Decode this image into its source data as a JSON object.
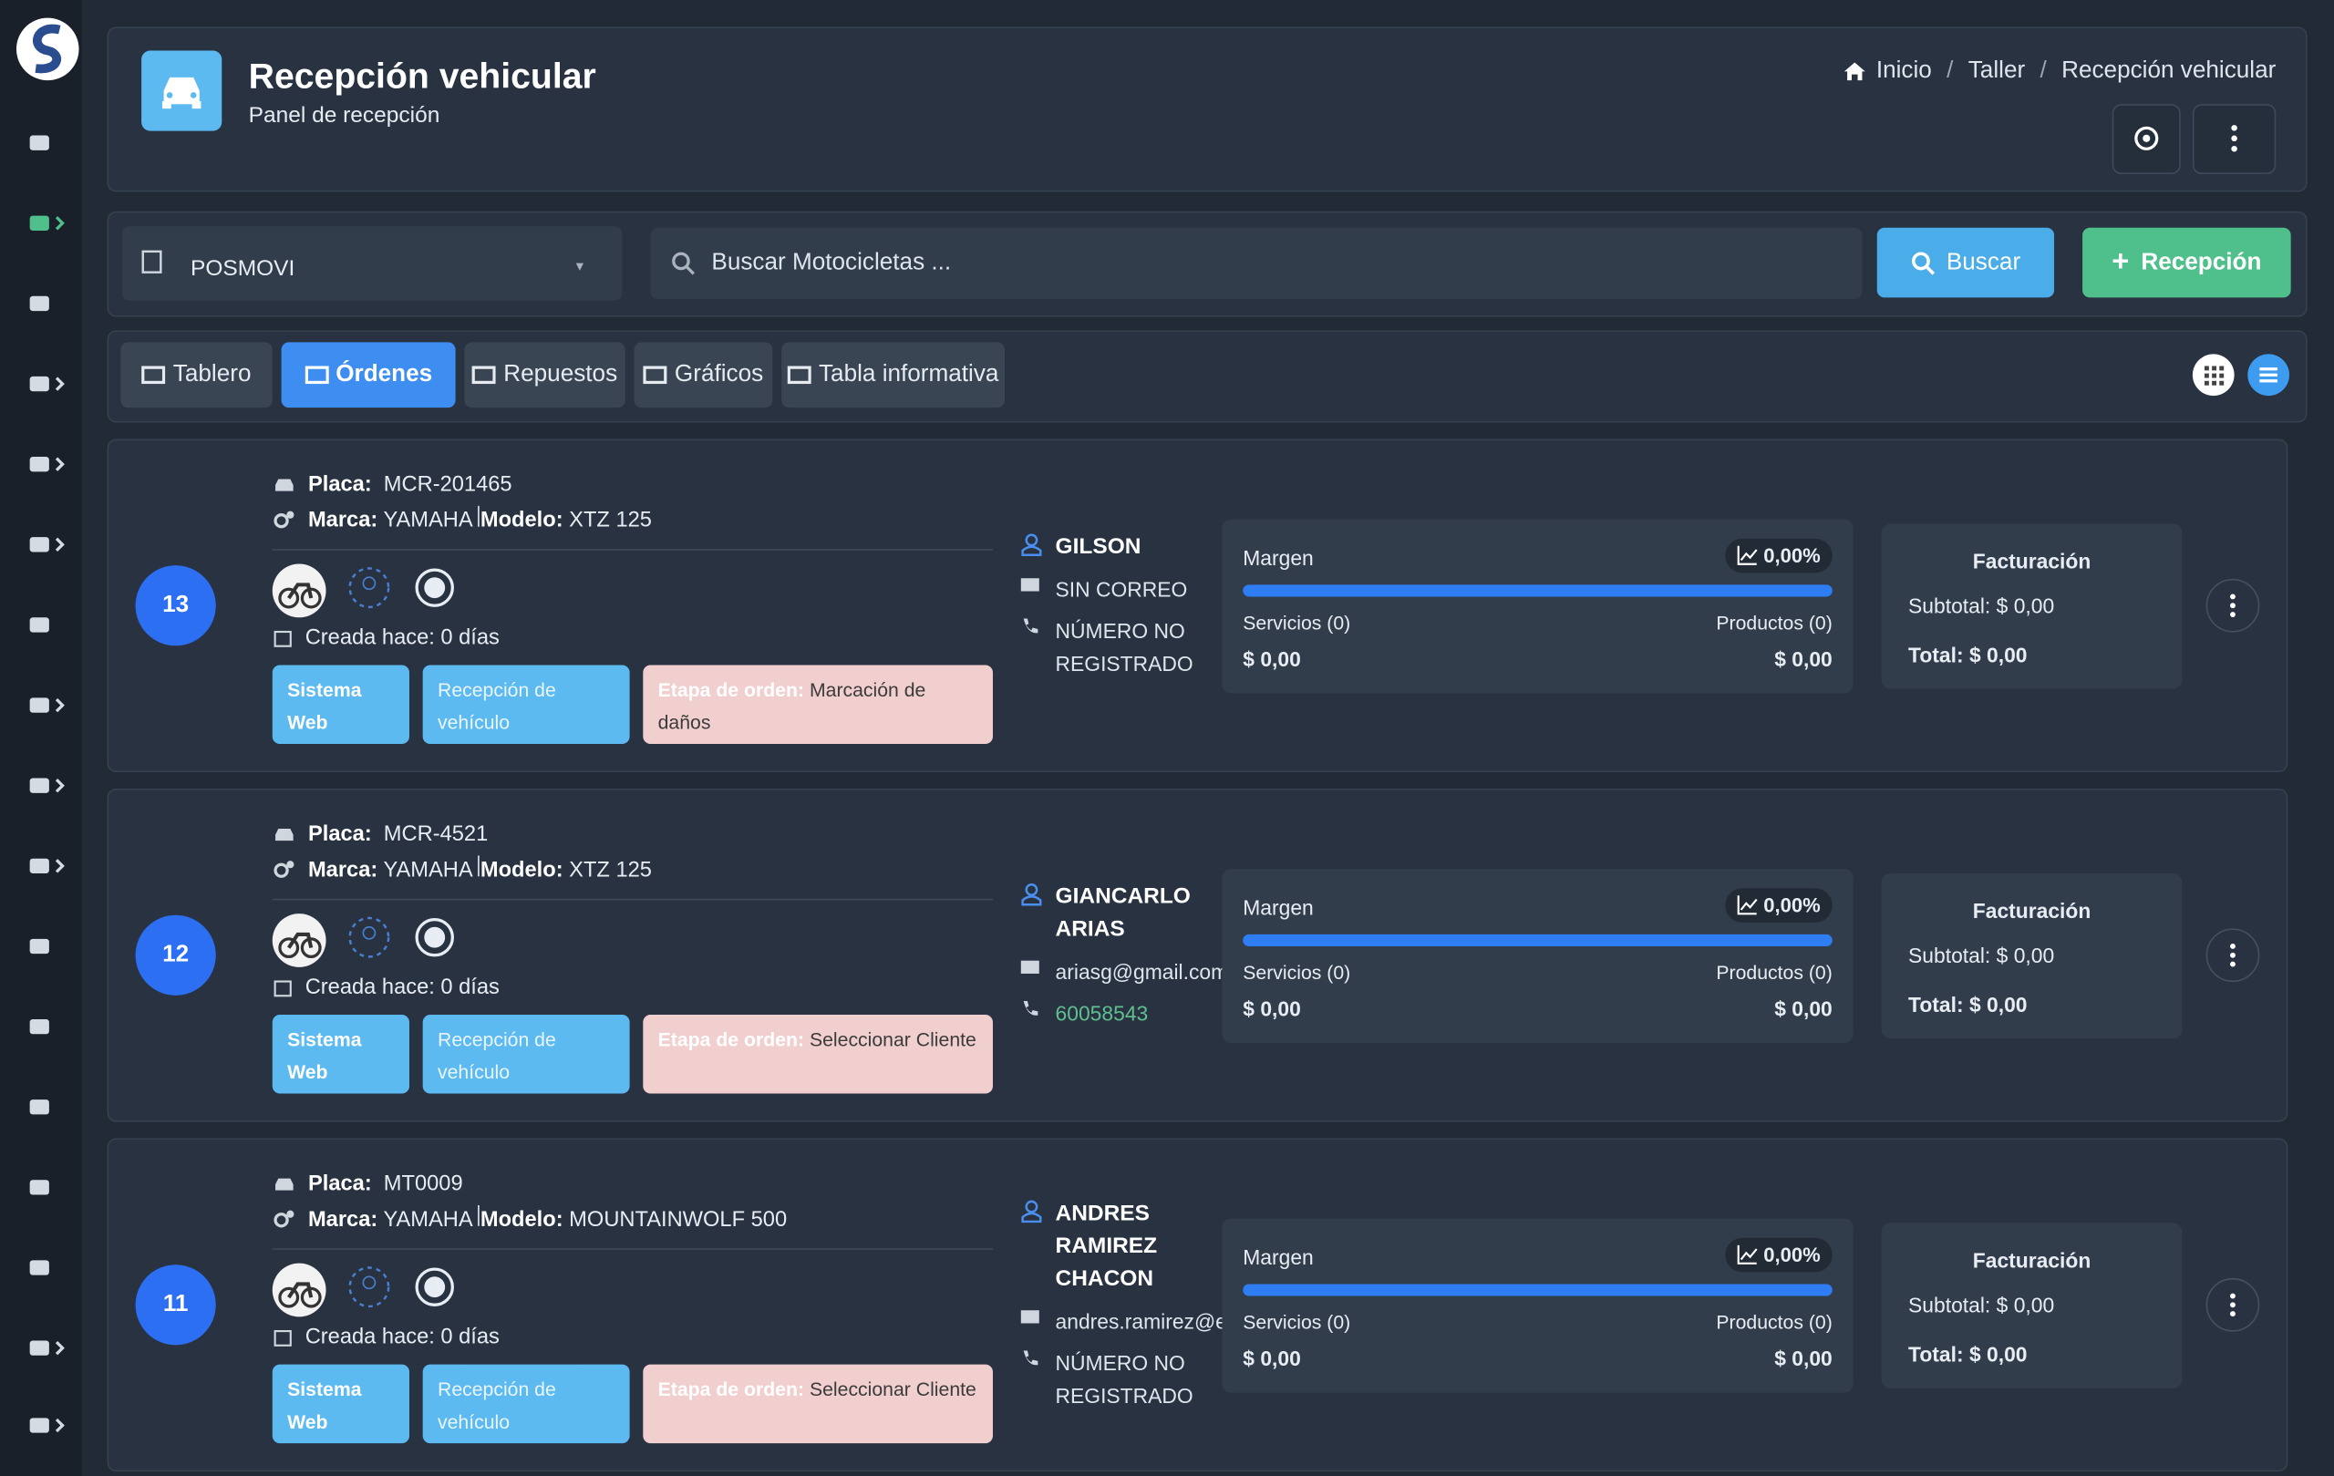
{
  "header": {
    "title": "Recepción vehicular",
    "subtitle": "Panel de recepción",
    "breadcrumb": [
      "Inicio",
      "Taller",
      "Recepción vehicular"
    ]
  },
  "filters": {
    "branch": "POSMOVI",
    "search_placeholder": "Buscar Motocicletas ...",
    "search_button": "Buscar",
    "new_button": "Recepción"
  },
  "tabs": {
    "items": [
      "Tablero",
      "Órdenes",
      "Repuestos",
      "Gráficos",
      "Tabla informativa"
    ],
    "active": 1
  },
  "labels": {
    "plate": "Placa:",
    "brand": "Marca:",
    "model": "Modelo:",
    "created": "Creada hace:",
    "stage": "Etapa de orden:",
    "margin": "Margen",
    "billing": "Facturación",
    "subtotal": "Subtotal:",
    "total": "Total:"
  },
  "orders": [
    {
      "number": 13,
      "plate": "MCR-201465",
      "brand": "YAMAHA",
      "model": "XTZ 125",
      "created": "0 días",
      "tags": [
        "Sistema Web",
        "Recepción de vehículo"
      ],
      "stage": "Marcación de daños",
      "client": {
        "name": "GILSON",
        "email": "SIN CORREO",
        "phone": "NÚMERO NO REGISTRADO"
      },
      "margin": "0,00%",
      "services": "Servicios (0)",
      "products": "Productos (0)",
      "services_amount": "$ 0,00",
      "products_amount": "$ 0,00",
      "subtotal": "$ 0,00",
      "total": "$ 0,00"
    },
    {
      "number": 12,
      "plate": "MCR-4521",
      "brand": "YAMAHA",
      "model": "XTZ 125",
      "created": "0 días",
      "tags": [
        "Sistema Web",
        "Recepción de vehículo"
      ],
      "stage": "Seleccionar Cliente",
      "client": {
        "name": "GIANCARLO ARIAS",
        "email": "ariasg@gmail.com",
        "phone": "60058543"
      },
      "margin": "0,00%",
      "services": "Servicios (0)",
      "products": "Productos (0)",
      "services_amount": "$ 0,00",
      "products_amount": "$ 0,00",
      "subtotal": "$ 0,00",
      "total": "$ 0,00"
    },
    {
      "number": 11,
      "plate": "MT0009",
      "brand": "YAMAHA",
      "model": "MOUNTAINWOLF 500",
      "created": "0 días",
      "tags": [
        "Sistema Web",
        "Recepción de vehículo"
      ],
      "stage": "Seleccionar Cliente",
      "client": {
        "name": "ANDRES RAMIREZ CHACON",
        "email": "andres.ramirez@example.com",
        "phone": "NÚMERO NO REGISTRADO"
      },
      "margin": "0,00%",
      "services": "Servicios (0)",
      "products": "Productos (0)",
      "services_amount": "$ 0,00",
      "products_amount": "$ 0,00",
      "subtotal": "$ 0,00",
      "total": "$ 0,00"
    }
  ]
}
